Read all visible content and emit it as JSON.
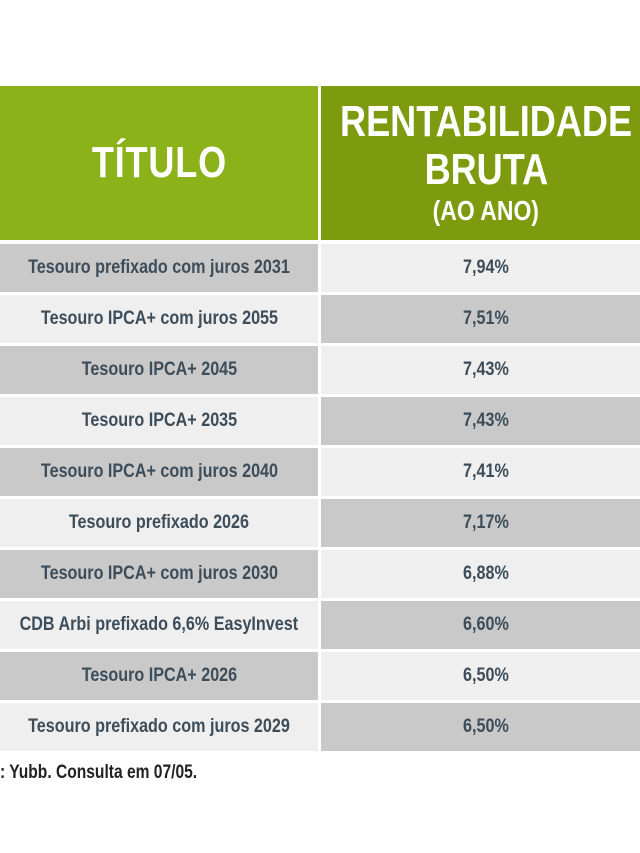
{
  "header": {
    "col1": "TÍTULO",
    "col2_line1": "RENTABILIDADE",
    "col2_line2": "BRUTA",
    "col2_line3": "(AO ANO)"
  },
  "rows": [
    {
      "titulo": "Tesouro prefixado com juros 2031",
      "rentabilidade": "7,94%"
    },
    {
      "titulo": "Tesouro IPCA+ com juros 2055",
      "rentabilidade": "7,51%"
    },
    {
      "titulo": "Tesouro IPCA+ 2045",
      "rentabilidade": "7,43%"
    },
    {
      "titulo": "Tesouro IPCA+ 2035",
      "rentabilidade": "7,43%"
    },
    {
      "titulo": "Tesouro IPCA+ com juros 2040",
      "rentabilidade": "7,41%"
    },
    {
      "titulo": "Tesouro prefixado 2026",
      "rentabilidade": "7,17%"
    },
    {
      "titulo": "Tesouro IPCA+ com juros 2030",
      "rentabilidade": "6,88%"
    },
    {
      "titulo": "CDB Arbi prefixado 6,6% EasyInvest",
      "rentabilidade": "6,60%"
    },
    {
      "titulo": "Tesouro IPCA+ 2026",
      "rentabilidade": "6,50%"
    },
    {
      "titulo": "Tesouro prefixado com juros 2029",
      "rentabilidade": "6,50%"
    }
  ],
  "source": ": Yubb. Consulta em 07/05."
}
